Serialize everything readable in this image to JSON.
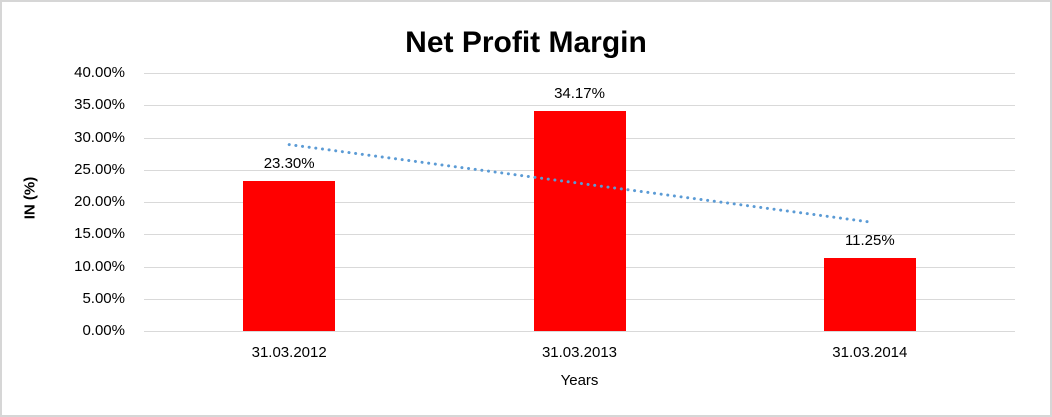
{
  "chart_data": {
    "type": "bar",
    "title": "Net Profit Margin",
    "xlabel": "Years",
    "ylabel": "IN (%)",
    "categories": [
      "31.03.2012",
      "31.03.2013",
      "31.03.2014"
    ],
    "values": [
      23.3,
      34.17,
      11.25
    ],
    "data_labels": [
      "23.30%",
      "34.17%",
      "11.25%"
    ],
    "ylim": [
      0,
      40
    ],
    "y_tick_step": 5,
    "y_tick_labels": [
      "0.00%",
      "5.00%",
      "10.00%",
      "15.00%",
      "20.00%",
      "25.00%",
      "30.00%",
      "35.00%",
      "40.00%"
    ],
    "grid": true,
    "legend_position": "none",
    "bar_color": "#ff0000",
    "gridline_color": "#d9d9d9",
    "text_color": "#000000",
    "trendline": {
      "type": "linear",
      "style": "dotted",
      "color": "#5b9bd5",
      "start_value": 28.9,
      "end_value": 16.9
    }
  }
}
